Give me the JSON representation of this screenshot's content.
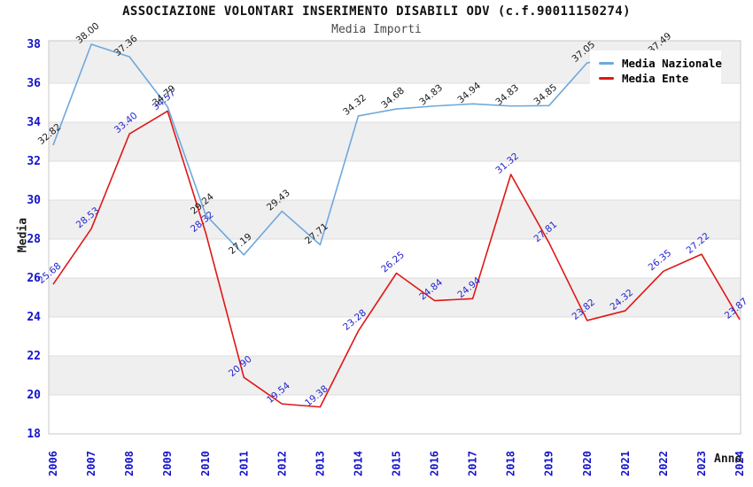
{
  "page": {
    "title": "ASSOCIAZIONE VOLONTARI INSERIMENTO DISABILI ODV (c.f.90011150274)",
    "subtitle": "Media Importi"
  },
  "chart_data": {
    "type": "line",
    "title": "ASSOCIAZIONE VOLONTARI INSERIMENTO DISABILI ODV (c.f.90011150274)",
    "subtitle": "Media Importi",
    "xlabel": "Anno",
    "ylabel": "Media",
    "x": [
      2006,
      2007,
      2008,
      2009,
      2010,
      2011,
      2012,
      2013,
      2014,
      2015,
      2016,
      2017,
      2018,
      2019,
      2020,
      2021,
      2022,
      2023,
      2024
    ],
    "ylim": [
      18,
      38
    ],
    "ytick_step": 2,
    "yticks": [
      18,
      20,
      22,
      24,
      26,
      28,
      30,
      32,
      34,
      36,
      38
    ],
    "grid": "alternating horizontal gray bands between even ticks",
    "legend_position": "top-right inside plot",
    "series": [
      {
        "name": "Media Nazionale",
        "color": "#6FA8DC",
        "label_color": "#1a1a1a",
        "values": [
          32.82,
          38.0,
          37.36,
          34.79,
          29.24,
          27.19,
          29.43,
          27.71,
          34.32,
          34.68,
          34.83,
          34.94,
          34.83,
          34.85,
          37.05,
          null,
          37.49,
          null,
          null
        ]
      },
      {
        "name": "Media Ente",
        "color": "#E01616",
        "label_color": "#2424CC",
        "values": [
          25.68,
          28.53,
          33.4,
          34.57,
          28.32,
          20.9,
          19.54,
          19.38,
          23.28,
          26.25,
          24.84,
          24.94,
          31.32,
          27.81,
          23.82,
          24.32,
          26.35,
          27.22,
          23.87
        ]
      }
    ],
    "colors": {
      "band": "#EFEFEF",
      "gridline": "#DCDCDC",
      "border": "#C9C9C9",
      "axis_text": "#1414CC",
      "title_text": "#111111",
      "subtitle_text": "#4A4A4A"
    }
  }
}
